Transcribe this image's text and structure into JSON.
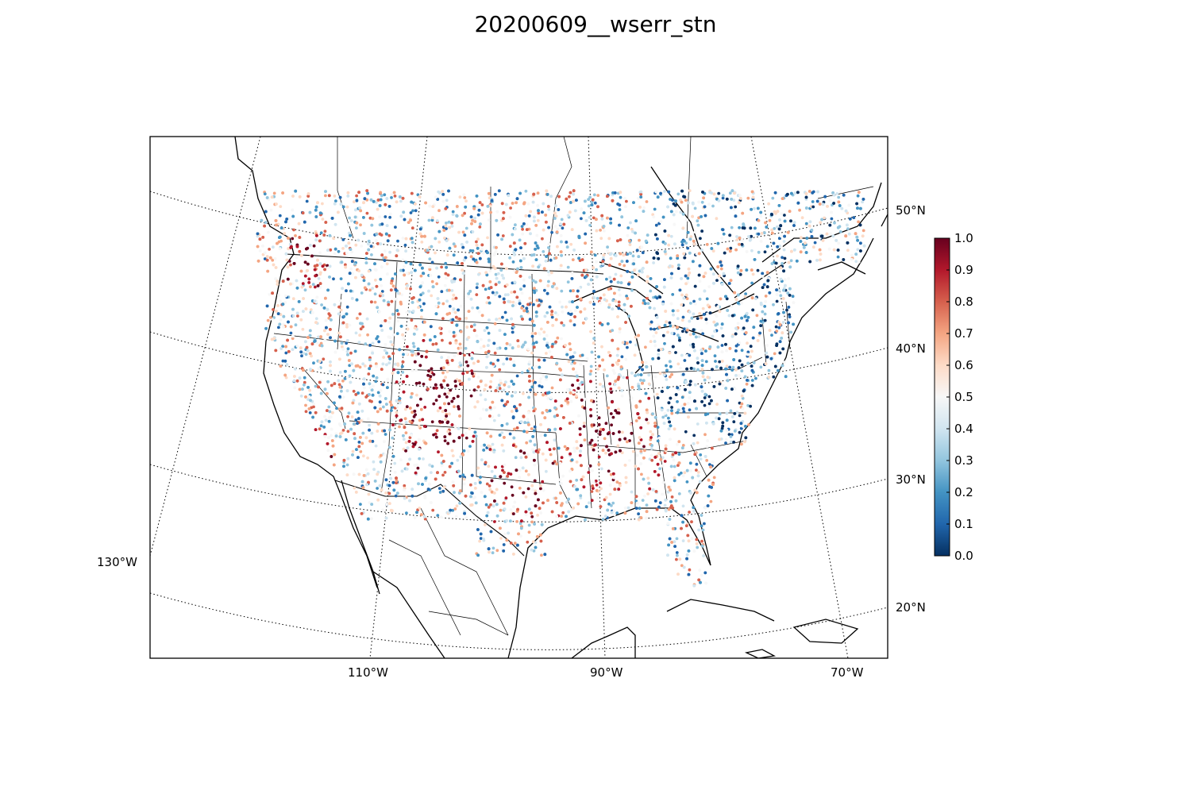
{
  "figure": {
    "title": "20200609__wserr_stn"
  },
  "map": {
    "projection": "lambert-conformal",
    "region": "CONUS with southern Canada, northern Mexico and Caribbean",
    "meridian_labels": [
      "130°W",
      "110°W",
      "90°W",
      "70°W"
    ],
    "parallel_labels": [
      "50°N",
      "40°N",
      "30°N",
      "20°N"
    ],
    "graticule_style": "dotted",
    "boundaries": [
      "coastlines",
      "country borders",
      "US state borders",
      "Mexican state borders",
      "Canadian province borders"
    ]
  },
  "colorbar": {
    "colormap": "RdBu_r",
    "min": 0.0,
    "max": 1.0,
    "ticks": [
      "0.0",
      "0.1",
      "0.2",
      "0.3",
      "0.4",
      "0.5",
      "0.6",
      "0.7",
      "0.8",
      "0.9",
      "1.0"
    ],
    "colors": [
      "#053061",
      "#2166ac",
      "#4393c3",
      "#92c5de",
      "#d1e5f0",
      "#f7f7f7",
      "#fddbc7",
      "#f4a582",
      "#d6604d",
      "#b2182b",
      "#67001f"
    ]
  },
  "chart_data": {
    "type": "scatter",
    "title": "20200609__wserr_stn",
    "value_range": [
      0.0,
      1.0
    ],
    "points_note": "dense station markers colored by value"
  }
}
